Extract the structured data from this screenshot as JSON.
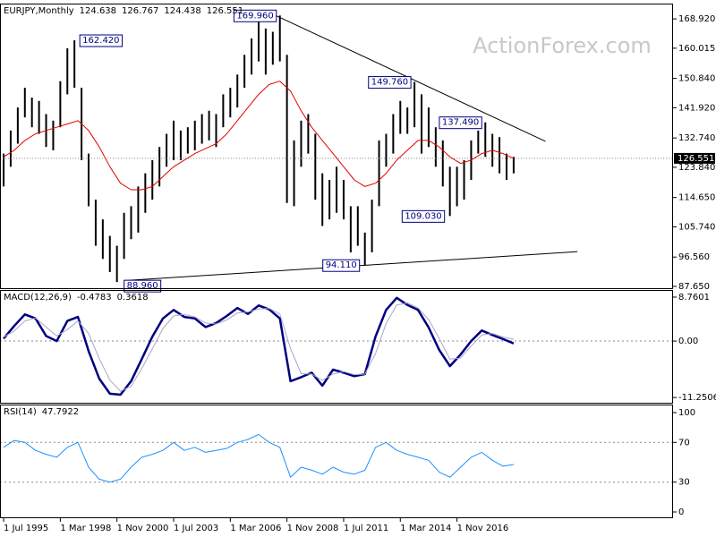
{
  "chart_data": [
    {
      "type": "ohlc",
      "title": "EURJPY,Monthly",
      "header_values": [
        124.638,
        126.767,
        124.438,
        126.551
      ],
      "watermark": "ActionForex.com",
      "ylim": [
        87.1,
        173.3
      ],
      "yticks": [
        {
          "value": 168.92,
          "label": "168.920"
        },
        160.015,
        {
          "value": 150.84,
          "label": "150.840"
        },
        {
          "value": 141.92,
          "label": "141.920"
        },
        {
          "value": 132.74,
          "label": "132.740"
        },
        {
          "value": 123.84,
          "label": "123.840"
        },
        {
          "value": 114.65,
          "label": "114.650"
        },
        {
          "value": 105.74,
          "label": "105.740"
        },
        {
          "value": 96.56,
          "label": "96.560"
        },
        {
          "value": 87.65,
          "label": "87.650"
        }
      ],
      "grid": false,
      "bars": {
        "color": "#000000",
        "x": [
          1995.5,
          1995.833,
          1996.167,
          1996.5,
          1996.833,
          1997.167,
          1997.5,
          1997.833,
          1998.167,
          1998.5,
          1998.833,
          1999.167,
          1999.5,
          1999.833,
          2000.167,
          2000.5,
          2000.833,
          2001.167,
          2001.5,
          2001.833,
          2002.167,
          2002.5,
          2002.833,
          2003.167,
          2003.5,
          2003.833,
          2004.167,
          2004.5,
          2004.833,
          2005.167,
          2005.5,
          2005.833,
          2006.167,
          2006.5,
          2006.833,
          2007.167,
          2007.5,
          2007.833,
          2008.167,
          2008.5,
          2008.833,
          2009.167,
          2009.5,
          2009.833,
          2010.167,
          2010.5,
          2010.833,
          2011.167,
          2011.5,
          2011.833,
          2012.167,
          2012.5,
          2012.833,
          2013.167,
          2013.5,
          2013.833,
          2014.167,
          2014.5,
          2014.833,
          2015.167,
          2015.5,
          2015.833,
          2016.167,
          2016.5,
          2016.833,
          2017.167,
          2017.5,
          2017.833,
          2018.167,
          2018.5,
          2018.833,
          2019.167,
          2019.5
        ],
        "high": [
          128,
          135,
          142,
          148,
          145,
          144,
          140,
          138,
          150,
          160,
          162.42,
          148,
          128,
          114,
          108,
          103,
          100,
          110,
          112,
          118,
          122,
          126,
          130,
          134,
          138,
          135,
          136,
          138,
          140,
          141,
          140,
          146,
          148,
          152,
          158,
          163,
          168,
          166,
          165,
          169.96,
          158,
          132,
          138,
          140,
          134,
          122,
          120,
          124,
          120,
          112,
          112,
          104,
          114,
          132,
          134,
          140,
          144,
          142,
          149.76,
          146,
          142,
          136,
          132,
          124,
          124,
          126,
          132,
          135,
          137.49,
          134,
          133,
          128,
          127
        ],
        "low": [
          118,
          124,
          131,
          139,
          136,
          134,
          130,
          129,
          136,
          146,
          148,
          126,
          112,
          100,
          96,
          92,
          88.96,
          96,
          102,
          104,
          110,
          114,
          118,
          124,
          126,
          126,
          128,
          129,
          131,
          132,
          130,
          136,
          139,
          142,
          148,
          152,
          156,
          152,
          155,
          156,
          113,
          112,
          124,
          128,
          114,
          106,
          108,
          110,
          108,
          98,
          100,
          94.11,
          98,
          112,
          124,
          128,
          134,
          134,
          136,
          128,
          130,
          124,
          118,
          109.03,
          112,
          114,
          120,
          128,
          127,
          124,
          122,
          120,
          122
        ]
      },
      "series": [
        {
          "color": "#e00000",
          "x": [
            1995.5,
            1996,
            1996.5,
            1997,
            1997.5,
            1998,
            1998.5,
            1999,
            1999.5,
            2000,
            2000.5,
            2001,
            2001.5,
            2002,
            2002.5,
            2003,
            2003.5,
            2004,
            2004.5,
            2005,
            2005.5,
            2006,
            2006.5,
            2007,
            2007.5,
            2008,
            2008.5,
            2009,
            2009.5,
            2010,
            2010.5,
            2011,
            2011.5,
            2012,
            2012.5,
            2013,
            2013.5,
            2014,
            2014.5,
            2015,
            2015.5,
            2016,
            2016.5,
            2017,
            2017.5,
            2018,
            2018.5,
            2019,
            2019.5
          ],
          "values": [
            127,
            129,
            132,
            134,
            135,
            136,
            137,
            138,
            135,
            130,
            124,
            119,
            117,
            117,
            118,
            121,
            124,
            126,
            128,
            129.5,
            131,
            134,
            138,
            142,
            146,
            149,
            150,
            147,
            141,
            136,
            132,
            128,
            124,
            120,
            118,
            119,
            122,
            126,
            129,
            132,
            132,
            130,
            127,
            125,
            126,
            128,
            129,
            128,
            126.5
          ]
        }
      ],
      "trendline_color": "#000000",
      "trendlines": [
        {
          "x": [
            2008.3,
            2021.0
          ],
          "y": [
            169.96,
            131.7
          ]
        },
        {
          "x": [
            2001.2,
            2022.5
          ],
          "y": [
            89.4,
            98.2
          ]
        }
      ],
      "annotation_color": "#000080",
      "annotations": [
        {
          "x": 1998.833,
          "value": 162.42,
          "label": "162.420"
        },
        {
          "x": 2008.5,
          "value": 169.96,
          "label": "169.960"
        },
        {
          "x": 2000.833,
          "value": 88.96,
          "label": "88.960"
        },
        {
          "x": 2012.5,
          "value": 94.11,
          "label": "94.110"
        },
        {
          "x": 2014.833,
          "value": 149.76,
          "label": "149.760"
        },
        {
          "x": 2016.5,
          "value": 109.03,
          "label": "109.030"
        },
        {
          "x": 2018.167,
          "value": 137.49,
          "label": "137.490"
        }
      ]
    },
    {
      "type": "line",
      "title": "MACD(12,26,9)",
      "ylim": [
        -12.3,
        10.0
      ],
      "yticks": [
        8.7601,
        {
          "value": 0,
          "label": "0.00"
        },
        -11.2506
      ],
      "grid": true,
      "series": [
        {
          "color": "#000080",
          "x": [
            1995.5,
            1996,
            1996.5,
            1997,
            1997.5,
            1998,
            1998.5,
            1999,
            1999.5,
            2000,
            2000.5,
            2001,
            2001.5,
            2002,
            2002.5,
            2003,
            2003.5,
            2004,
            2004.5,
            2005,
            2005.5,
            2006,
            2006.5,
            2007,
            2007.5,
            2008,
            2008.5,
            2009,
            2009.5,
            2010,
            2010.5,
            2011,
            2011.5,
            2012,
            2012.5,
            2013,
            2013.5,
            2014,
            2014.5,
            2015,
            2015.5,
            2016,
            2016.5,
            2017,
            2017.5,
            2018,
            2018.5,
            2019,
            2019.5
          ],
          "values": [
            0.5,
            3,
            5.3,
            4.5,
            1,
            0,
            4,
            4.8,
            -2,
            -7.5,
            -10.5,
            -10.7,
            -8,
            -3.6,
            0.9,
            4.5,
            6.2,
            4.8,
            4.5,
            2.8,
            3.6,
            5,
            6.6,
            5.4,
            7.1,
            6.3,
            4.5,
            -8,
            -7.2,
            -6.3,
            -8.9,
            -5.7,
            -6.3,
            -7,
            -6.6,
            0.9,
            6.2,
            8.6,
            7.2,
            6.2,
            2.7,
            -1.8,
            -5,
            -2.7,
            0,
            2.1,
            1.2,
            0.4,
            -0.4783
          ]
        },
        {
          "color": "#a8a8c8",
          "x": [
            1995.5,
            1996,
            1996.5,
            1997,
            1997.5,
            1998,
            1998.5,
            1999,
            1999.5,
            2000,
            2000.5,
            2001,
            2001.5,
            2002,
            2002.5,
            2003,
            2003.5,
            2004,
            2004.5,
            2005,
            2005.5,
            2006,
            2006.5,
            2007,
            2007.5,
            2008,
            2008.5,
            2009,
            2009.5,
            2010,
            2010.5,
            2011,
            2011.5,
            2012,
            2012.5,
            2013,
            2013.5,
            2014,
            2014.5,
            2015,
            2015.5,
            2016,
            2016.5,
            2017,
            2017.5,
            2018,
            2018.5,
            2019,
            2019.5
          ],
          "values": [
            0.8,
            2,
            4,
            4.6,
            2.8,
            1,
            2.3,
            4,
            1.5,
            -3.5,
            -7.8,
            -10,
            -9,
            -5.5,
            -1.5,
            2.5,
            5,
            5.3,
            4.8,
            3.6,
            3.4,
            4.2,
            5.6,
            5.8,
            6.4,
            6.5,
            5.4,
            -1.5,
            -6.5,
            -6.6,
            -7.8,
            -6.6,
            -6.1,
            -6.7,
            -6.6,
            -2.5,
            3.5,
            7.2,
            7.6,
            6.6,
            4.3,
            0.5,
            -3.6,
            -3.4,
            -1,
            1.2,
            1.5,
            0.8,
            0.3618
          ]
        }
      ]
    },
    {
      "type": "line",
      "title": "RSI(14)",
      "ylim": [
        -5.4,
        107.2
      ],
      "yticks": [
        100,
        70,
        30,
        0
      ],
      "grid": true,
      "xlim": [
        1995.33,
        2027.0
      ],
      "xticks": [
        {
          "value": 1995.5,
          "label": "1 Jul 1995"
        },
        {
          "value": 1998.167,
          "label": "1 Mar 1998"
        },
        {
          "value": 2000.833,
          "label": "1 Nov 2000"
        },
        {
          "value": 2003.5,
          "label": "1 Jul 2003"
        },
        {
          "value": 2006.167,
          "label": "1 Mar 2006"
        },
        {
          "value": 2008.833,
          "label": "1 Nov 2008"
        },
        {
          "value": 2011.5,
          "label": "1 Jul 2011"
        },
        {
          "value": 2014.167,
          "label": "1 Mar 2014"
        },
        {
          "value": 2016.833,
          "label": "1 Nov 2016"
        }
      ],
      "series": [
        {
          "color": "#1e90ff",
          "x": [
            1995.5,
            1996,
            1996.5,
            1997,
            1997.5,
            1998,
            1998.5,
            1999,
            1999.5,
            2000,
            2000.5,
            2001,
            2001.5,
            2002,
            2002.5,
            2003,
            2003.5,
            2004,
            2004.5,
            2005,
            2005.5,
            2006,
            2006.5,
            2007,
            2007.5,
            2008,
            2008.5,
            2009,
            2009.5,
            2010,
            2010.5,
            2011,
            2011.5,
            2012,
            2012.5,
            2013,
            2013.5,
            2014,
            2014.5,
            2015,
            2015.5,
            2016,
            2016.5,
            2017,
            2017.5,
            2018,
            2018.5,
            2019,
            2019.5
          ],
          "values": [
            65,
            72,
            70,
            62,
            58,
            55,
            65,
            70,
            45,
            33,
            30,
            33,
            45,
            55,
            58,
            62,
            70,
            62,
            65,
            60,
            62,
            64,
            70,
            73,
            78,
            70,
            65,
            35,
            45,
            42,
            38,
            45,
            40,
            38,
            42,
            65,
            70,
            62,
            58,
            55,
            52,
            40,
            35,
            45,
            55,
            60,
            52,
            46,
            47.7922
          ]
        }
      ]
    }
  ]
}
